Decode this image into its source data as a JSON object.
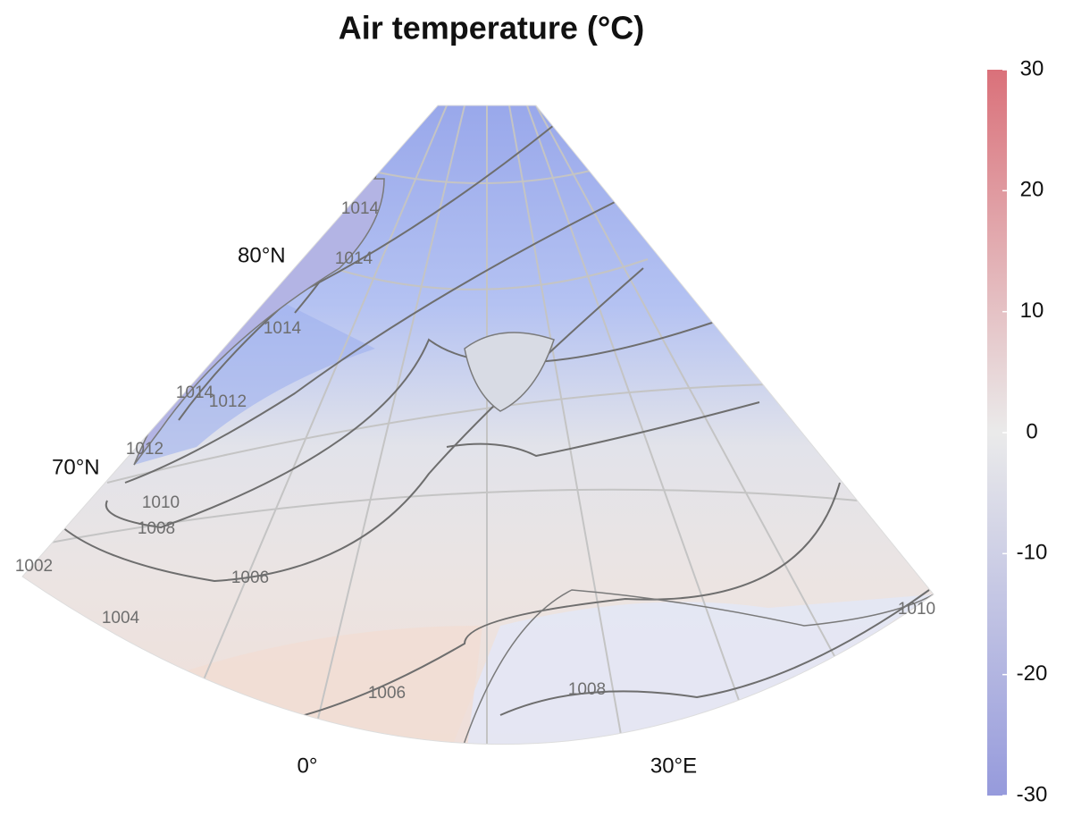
{
  "title": "Air temperature (°C)",
  "colorbar": {
    "lim": [
      -30,
      30
    ],
    "ticks": [
      30,
      20,
      10,
      0,
      -10,
      -20,
      -30
    ],
    "colors": [
      "#8a8fd8",
      "#e8e8e8",
      "#d6616b"
    ]
  },
  "graticule_labels": [
    "80°N",
    "70°N",
    "0°",
    "30°E"
  ],
  "contour_labels": [
    1014,
    1014,
    1014,
    1014,
    1012,
    1012,
    1010,
    1008,
    1006,
    1002,
    1004,
    1006,
    1008,
    1010
  ]
}
